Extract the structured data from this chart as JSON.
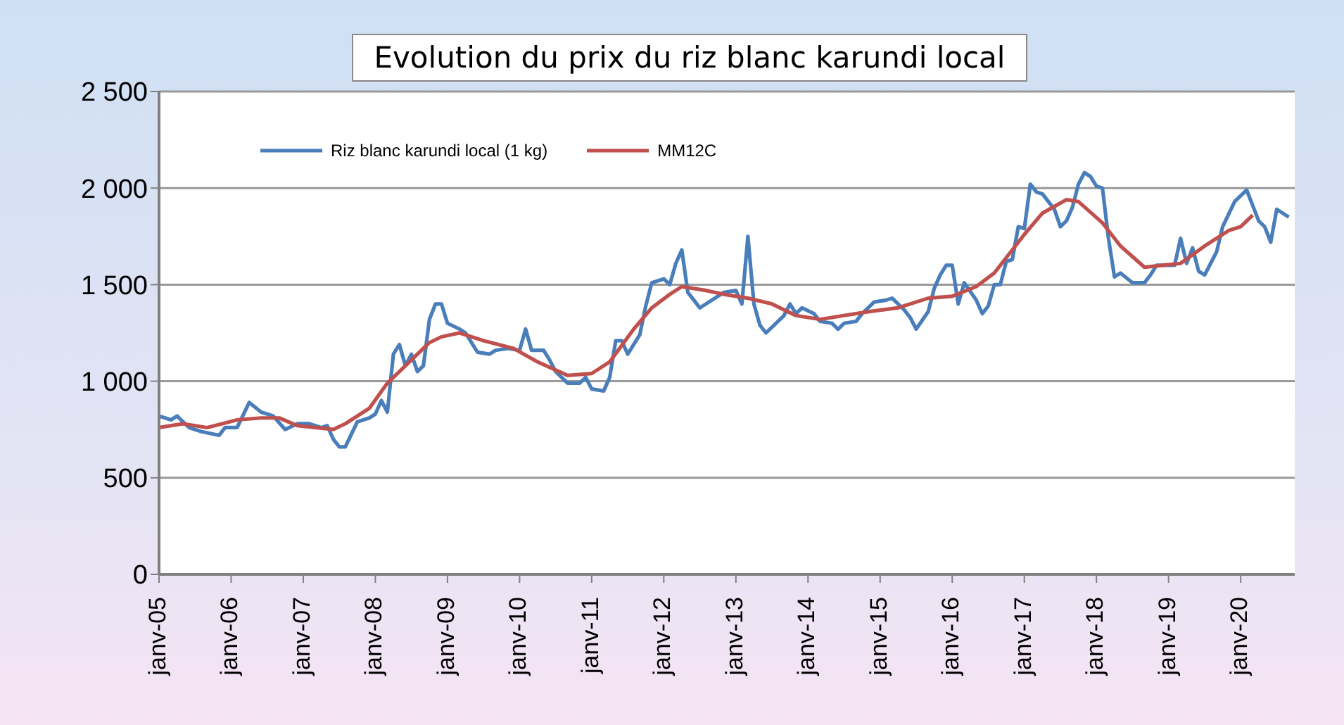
{
  "chart_data": {
    "type": "line",
    "title": "Evolution du prix du riz blanc karundi local",
    "xlim": [
      "2005-01",
      "2020-10"
    ],
    "xticks": [
      {
        "value": "2005-01",
        "label": "janv-05"
      },
      {
        "value": "2006-01",
        "label": "janv-06"
      },
      {
        "value": "2007-01",
        "label": "janv-07"
      },
      {
        "value": "2008-01",
        "label": "janv-08"
      },
      {
        "value": "2009-01",
        "label": "janv-09"
      },
      {
        "value": "2010-01",
        "label": "janv-10"
      },
      {
        "value": "2011-01",
        "label": "janv-11"
      },
      {
        "value": "2012-01",
        "label": "janv-12"
      },
      {
        "value": "2013-01",
        "label": "janv-13"
      },
      {
        "value": "2014-01",
        "label": "janv-14"
      },
      {
        "value": "2015-01",
        "label": "janv-15"
      },
      {
        "value": "2016-01",
        "label": "janv-16"
      },
      {
        "value": "2017-01",
        "label": "janv-17"
      },
      {
        "value": "2018-01",
        "label": "janv-18"
      },
      {
        "value": "2019-01",
        "label": "janv-19"
      },
      {
        "value": "2020-01",
        "label": "janv-20"
      }
    ],
    "ylim": [
      0,
      2500
    ],
    "yticks": [
      0,
      500,
      {
        "value": 1000,
        "label": "1 000"
      },
      {
        "value": 1500,
        "label": "1 500"
      },
      {
        "value": 2000,
        "label": "2 000"
      },
      {
        "value": 2500,
        "label": "2 500"
      }
    ],
    "grid": "y",
    "legend": "top left",
    "marker": "none",
    "line_style": "solid",
    "series": [
      {
        "name": "Riz blanc karundi local (1 kg)",
        "color": "#4a7ebb",
        "x": [
          "2005-01",
          "2005-03",
          "2005-04",
          "2005-06",
          "2005-08",
          "2005-11",
          "2005-12",
          "2006-02",
          "2006-04",
          "2006-06",
          "2006-08",
          "2006-10",
          "2006-12",
          "2007-02",
          "2007-04",
          "2007-05",
          "2007-06",
          "2007-07",
          "2007-08",
          "2007-10",
          "2007-12",
          "2008-01",
          "2008-02",
          "2008-03",
          "2008-04",
          "2008-05",
          "2008-06",
          "2008-07",
          "2008-08",
          "2008-09",
          "2008-10",
          "2008-11",
          "2008-12",
          "2009-01",
          "2009-03",
          "2009-04",
          "2009-06",
          "2009-08",
          "2009-09",
          "2009-11",
          "2010-01",
          "2010-02",
          "2010-03",
          "2010-05",
          "2010-06",
          "2010-07",
          "2010-09",
          "2010-11",
          "2010-12",
          "2011-01",
          "2011-03",
          "2011-04",
          "2011-05",
          "2011-06",
          "2011-07",
          "2011-08",
          "2011-09",
          "2011-10",
          "2011-11",
          "2012-01",
          "2012-02",
          "2012-03",
          "2012-04",
          "2012-05",
          "2012-07",
          "2012-09",
          "2012-11",
          "2013-01",
          "2013-02",
          "2013-03",
          "2013-04",
          "2013-05",
          "2013-06",
          "2013-08",
          "2013-09",
          "2013-10",
          "2013-11",
          "2013-12",
          "2014-02",
          "2014-03",
          "2014-05",
          "2014-06",
          "2014-07",
          "2014-09",
          "2014-10",
          "2014-12",
          "2015-02",
          "2015-03",
          "2015-04",
          "2015-05",
          "2015-06",
          "2015-07",
          "2015-09",
          "2015-10",
          "2015-11",
          "2015-12",
          "2016-01",
          "2016-02",
          "2016-03",
          "2016-05",
          "2016-06",
          "2016-07",
          "2016-08",
          "2016-09",
          "2016-10",
          "2016-11",
          "2016-12",
          "2017-01",
          "2017-02",
          "2017-03",
          "2017-04",
          "2017-06",
          "2017-07",
          "2017-08",
          "2017-09",
          "2017-10",
          "2017-11",
          "2017-12",
          "2018-01",
          "2018-02",
          "2018-03",
          "2018-04",
          "2018-05",
          "2018-07",
          "2018-09",
          "2018-10",
          "2018-11",
          "2019-02",
          "2019-03",
          "2019-04",
          "2019-05",
          "2019-06",
          "2019-07",
          "2019-09",
          "2019-10",
          "2019-12",
          "2020-02",
          "2020-03",
          "2020-04",
          "2020-05",
          "2020-06",
          "2020-07",
          "2020-08",
          "2020-09"
        ],
        "values": [
          820,
          800,
          820,
          760,
          740,
          720,
          760,
          760,
          890,
          840,
          820,
          750,
          780,
          780,
          760,
          770,
          700,
          660,
          660,
          790,
          810,
          830,
          900,
          840,
          1140,
          1190,
          1080,
          1140,
          1050,
          1080,
          1320,
          1400,
          1400,
          1300,
          1270,
          1250,
          1150,
          1140,
          1160,
          1170,
          1160,
          1270,
          1160,
          1160,
          1110,
          1050,
          990,
          990,
          1020,
          960,
          950,
          1020,
          1210,
          1210,
          1140,
          1190,
          1240,
          1390,
          1510,
          1530,
          1500,
          1610,
          1680,
          1460,
          1380,
          1420,
          1460,
          1470,
          1400,
          1750,
          1400,
          1290,
          1250,
          1310,
          1340,
          1400,
          1350,
          1380,
          1350,
          1310,
          1300,
          1270,
          1300,
          1310,
          1350,
          1410,
          1420,
          1430,
          1400,
          1370,
          1330,
          1270,
          1360,
          1480,
          1550,
          1600,
          1600,
          1400,
          1510,
          1420,
          1350,
          1390,
          1500,
          1500,
          1620,
          1630,
          1800,
          1790,
          2020,
          1980,
          1970,
          1890,
          1800,
          1830,
          1900,
          2020,
          2080,
          2060,
          2010,
          2000,
          1740,
          1540,
          1560,
          1510,
          1510,
          1550,
          1600,
          1600,
          1740,
          1610,
          1690,
          1570,
          1550,
          1670,
          1800,
          1930,
          1990,
          1910,
          1830,
          1800,
          1720,
          1890,
          1870,
          1850
        ]
      },
      {
        "name": "MM12C",
        "color": "#c0504d",
        "x": [
          "2005-01",
          "2005-05",
          "2005-09",
          "2006-02",
          "2006-06",
          "2006-09",
          "2006-12",
          "2007-03",
          "2007-06",
          "2007-08",
          "2007-12",
          "2008-03",
          "2008-07",
          "2008-10",
          "2008-12",
          "2009-03",
          "2009-07",
          "2009-12",
          "2010-04",
          "2010-09",
          "2011-01",
          "2011-04",
          "2011-08",
          "2011-11",
          "2012-02",
          "2012-04",
          "2012-08",
          "2012-11",
          "2013-03",
          "2013-07",
          "2013-11",
          "2014-03",
          "2014-07",
          "2014-11",
          "2015-04",
          "2015-09",
          "2016-01",
          "2016-05",
          "2016-08",
          "2016-11",
          "2017-01",
          "2017-04",
          "2017-08",
          "2017-10",
          "2018-02",
          "2018-05",
          "2018-09",
          "2018-12",
          "2019-03",
          "2019-07",
          "2019-11",
          "2020-01",
          "2020-03"
        ],
        "values": [
          760,
          780,
          760,
          800,
          810,
          810,
          770,
          760,
          750,
          780,
          860,
          990,
          1110,
          1200,
          1230,
          1250,
          1210,
          1170,
          1100,
          1030,
          1040,
          1100,
          1270,
          1380,
          1450,
          1490,
          1470,
          1450,
          1430,
          1400,
          1340,
          1320,
          1340,
          1360,
          1380,
          1430,
          1440,
          1490,
          1560,
          1680,
          1760,
          1870,
          1940,
          1930,
          1820,
          1700,
          1590,
          1600,
          1610,
          1700,
          1780,
          1800,
          1860
        ]
      }
    ]
  }
}
